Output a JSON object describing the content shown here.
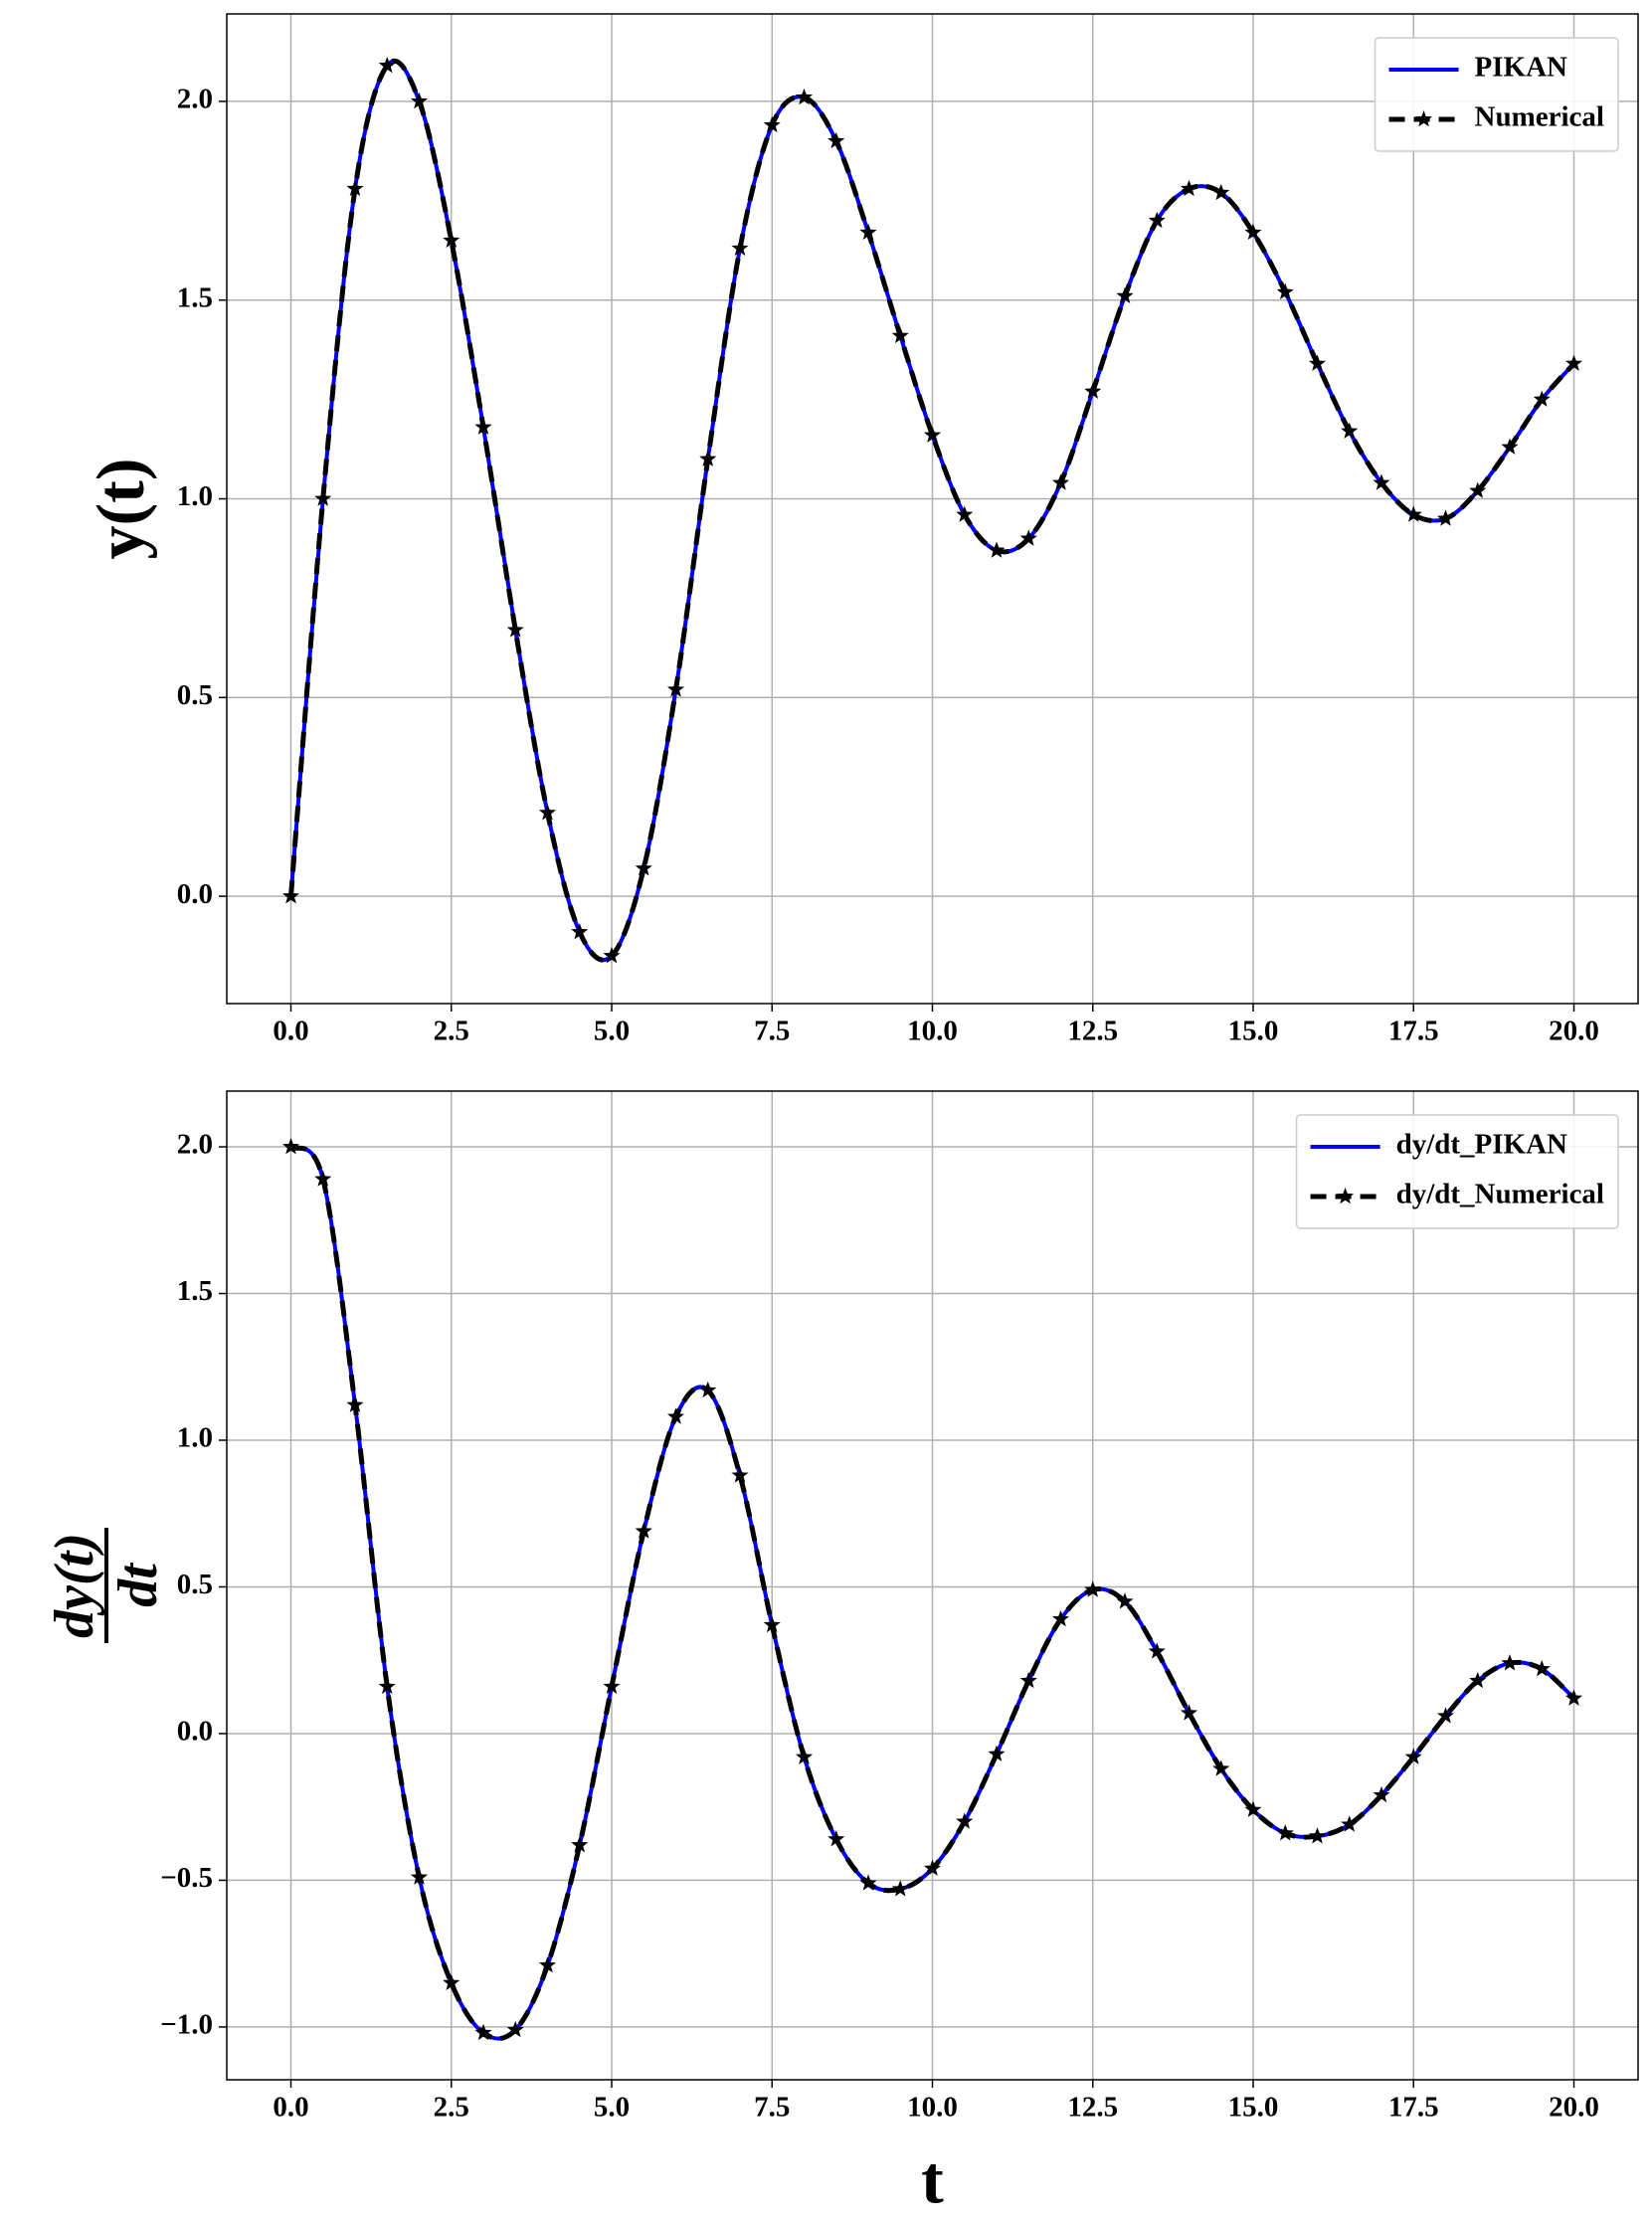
{
  "chart_data": [
    {
      "type": "line",
      "ylabel": "y(t)",
      "x": [
        0,
        0.5,
        1,
        1.5,
        2,
        2.5,
        3,
        3.5,
        4,
        4.5,
        5,
        5.5,
        6,
        6.5,
        7,
        7.5,
        8,
        8.5,
        9,
        9.5,
        10,
        10.5,
        11,
        11.5,
        12,
        12.5,
        13,
        13.5,
        14,
        14.5,
        15,
        15.5,
        16,
        16.5,
        17,
        17.5,
        18,
        18.5,
        19,
        19.5,
        20
      ],
      "series": [
        {
          "name": "PIKAN",
          "color": "#0000ff",
          "values": [
            0,
            1.0,
            1.78,
            2.09,
            2.0,
            1.65,
            1.18,
            0.67,
            0.21,
            -0.09,
            -0.15,
            0.07,
            0.52,
            1.1,
            1.63,
            1.94,
            2.01,
            1.9,
            1.67,
            1.41,
            1.16,
            0.96,
            0.87,
            0.9,
            1.04,
            1.27,
            1.51,
            1.7,
            1.78,
            1.77,
            1.67,
            1.52,
            1.34,
            1.17,
            1.04,
            0.96,
            0.95,
            1.02,
            1.13,
            1.25,
            1.34
          ]
        },
        {
          "name": "Numerical",
          "color": "#000000",
          "values": [
            0,
            1.0,
            1.78,
            2.09,
            2.0,
            1.65,
            1.18,
            0.67,
            0.21,
            -0.09,
            -0.15,
            0.07,
            0.52,
            1.1,
            1.63,
            1.94,
            2.01,
            1.9,
            1.67,
            1.41,
            1.16,
            0.96,
            0.87,
            0.9,
            1.04,
            1.27,
            1.51,
            1.7,
            1.78,
            1.77,
            1.67,
            1.52,
            1.34,
            1.17,
            1.04,
            0.96,
            0.95,
            1.02,
            1.13,
            1.25,
            1.34
          ]
        }
      ],
      "xlim": [
        -1,
        21
      ],
      "ylim": [
        -0.27,
        2.22
      ],
      "xticks": [
        {
          "value": 0,
          "label": "0.0"
        },
        {
          "value": 2.5,
          "label": "2.5"
        },
        {
          "value": 5,
          "label": "5.0"
        },
        {
          "value": 7.5,
          "label": "7.5"
        },
        {
          "value": 10,
          "label": "10.0"
        },
        {
          "value": 12.5,
          "label": "12.5"
        },
        {
          "value": 15,
          "label": "15.0"
        },
        {
          "value": 17.5,
          "label": "17.5"
        },
        {
          "value": 20,
          "label": "20.0"
        }
      ],
      "yticks": [
        {
          "value": 0,
          "label": "0.0"
        },
        {
          "value": 0.5,
          "label": "0.5"
        },
        {
          "value": 1,
          "label": "1.0"
        },
        {
          "value": 1.5,
          "label": "1.5"
        },
        {
          "value": 2,
          "label": "2.0"
        }
      ],
      "grid": true,
      "legend": "upper right"
    },
    {
      "type": "line",
      "ylabel_numerator": "dy(t)",
      "ylabel_denominator": "dt",
      "xlabel": "t",
      "x": [
        0,
        0.5,
        1,
        1.5,
        2,
        2.5,
        3,
        3.5,
        4,
        4.5,
        5,
        5.5,
        6,
        6.5,
        7,
        7.5,
        8,
        8.5,
        9,
        9.5,
        10,
        10.5,
        11,
        11.5,
        12,
        12.5,
        13,
        13.5,
        14,
        14.5,
        15,
        15.5,
        16,
        16.5,
        17,
        17.5,
        18,
        18.5,
        19,
        19.5,
        20
      ],
      "series": [
        {
          "name": "dy/dt_PIKAN",
          "color": "#0000ff",
          "values": [
            2.0,
            1.89,
            1.12,
            0.16,
            -0.49,
            -0.85,
            -1.02,
            -1.01,
            -0.79,
            -0.38,
            0.16,
            0.69,
            1.08,
            1.17,
            0.88,
            0.37,
            -0.08,
            -0.36,
            -0.51,
            -0.53,
            -0.46,
            -0.3,
            -0.07,
            0.18,
            0.39,
            0.49,
            0.45,
            0.28,
            0.07,
            -0.12,
            -0.26,
            -0.34,
            -0.35,
            -0.31,
            -0.21,
            -0.08,
            0.06,
            0.18,
            0.24,
            0.22,
            0.12
          ]
        },
        {
          "name": "dy/dt_Numerical",
          "color": "#000000",
          "values": [
            2.0,
            1.89,
            1.12,
            0.16,
            -0.49,
            -0.85,
            -1.02,
            -1.01,
            -0.79,
            -0.38,
            0.16,
            0.69,
            1.08,
            1.17,
            0.88,
            0.37,
            -0.08,
            -0.36,
            -0.51,
            -0.53,
            -0.46,
            -0.3,
            -0.07,
            0.18,
            0.39,
            0.49,
            0.45,
            0.28,
            0.07,
            -0.12,
            -0.26,
            -0.34,
            -0.35,
            -0.31,
            -0.21,
            -0.08,
            0.06,
            0.18,
            0.24,
            0.22,
            0.12
          ]
        }
      ],
      "xlim": [
        -1,
        21
      ],
      "ylim": [
        -1.18,
        2.19
      ],
      "xticks": [
        {
          "value": 0,
          "label": "0.0"
        },
        {
          "value": 2.5,
          "label": "2.5"
        },
        {
          "value": 5,
          "label": "5.0"
        },
        {
          "value": 7.5,
          "label": "7.5"
        },
        {
          "value": 10,
          "label": "10.0"
        },
        {
          "value": 12.5,
          "label": "12.5"
        },
        {
          "value": 15,
          "label": "15.0"
        },
        {
          "value": 17.5,
          "label": "17.5"
        },
        {
          "value": 20,
          "label": "20.0"
        }
      ],
      "yticks": [
        {
          "value": -1,
          "label": "−1.0"
        },
        {
          "value": -0.5,
          "label": "−0.5"
        },
        {
          "value": 0,
          "label": "0.0"
        },
        {
          "value": 0.5,
          "label": "0.5"
        },
        {
          "value": 1,
          "label": "1.0"
        },
        {
          "value": 1.5,
          "label": "1.5"
        },
        {
          "value": 2,
          "label": "2.0"
        }
      ],
      "grid": true,
      "legend": "upper right"
    }
  ]
}
